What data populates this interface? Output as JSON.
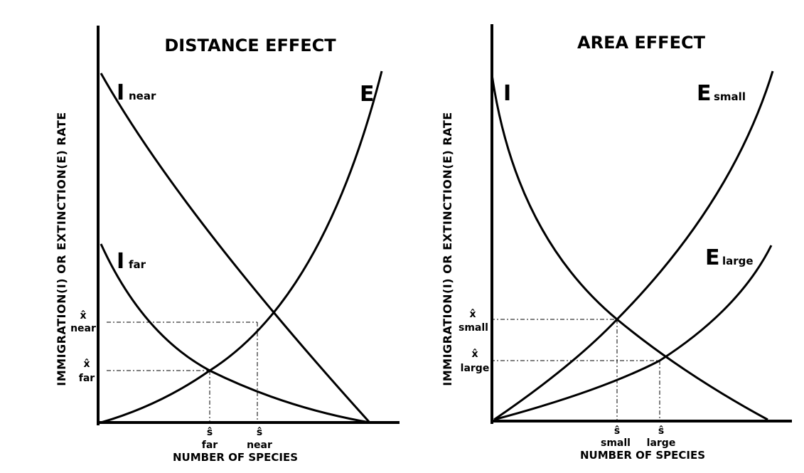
{
  "panels": {
    "distance": {
      "title": "DISTANCE EFFECT",
      "ylabel": "IMMIGRATION(I) OR EXTINCTION(E) RATE",
      "xlabel": "NUMBER OF SPECIES",
      "curve_labels": {
        "i_near_main": "I",
        "i_near_sub": "near",
        "i_far_main": "I",
        "i_far_sub": "far",
        "e_main": "E"
      },
      "y_markers": {
        "near_hat": "x̂",
        "near_text": "near",
        "far_hat": "x̂",
        "far_text": "far"
      },
      "x_markers": {
        "far_hat": "ŝ",
        "far_text": "far",
        "near_hat": "ŝ",
        "near_text": "near"
      }
    },
    "area": {
      "title": "AREA EFFECT",
      "ylabel": "IMMIGRATION(I) OR EXTINCTION(E) RATE",
      "xlabel": "NUMBER OF SPECIES",
      "curve_labels": {
        "i_main": "I",
        "e_small_main": "E",
        "e_small_sub": "small",
        "e_large_main": "E",
        "e_large_sub": "large"
      },
      "y_markers": {
        "small_hat": "x̂",
        "small_text": "small",
        "large_hat": "x̂",
        "large_text": "large"
      },
      "x_markers": {
        "small_hat": "ŝ",
        "small_text": "small",
        "large_hat": "ŝ",
        "large_text": "large"
      }
    }
  }
}
